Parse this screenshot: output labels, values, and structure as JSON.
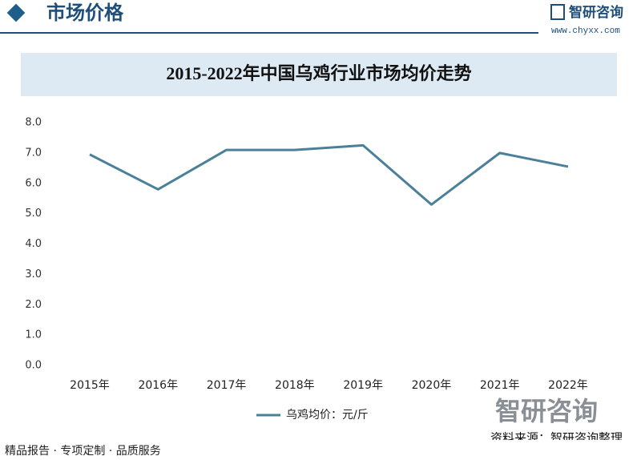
{
  "header": {
    "title": "市场价格",
    "logo": "智研咨询",
    "url": "www.chyxx.com"
  },
  "chart_data": {
    "type": "line",
    "title": "2015-2022年中国乌鸡行业市场均价走势",
    "categories": [
      "2015年",
      "2016年",
      "2017年",
      "2018年",
      "2019年",
      "2020年",
      "2021年",
      "2022年"
    ],
    "series": [
      {
        "name": "乌鸡均价：元/斤",
        "color": "#4a8098",
        "values": [
          6.95,
          5.8,
          7.1,
          7.1,
          7.25,
          5.3,
          7.0,
          6.55
        ]
      }
    ],
    "ylim": [
      0,
      8
    ],
    "yticks": [
      {
        "value": 0,
        "label": "0.0"
      },
      {
        "value": 1,
        "label": "1.0"
      },
      {
        "value": 2,
        "label": "2.0"
      },
      {
        "value": 3,
        "label": "3.0"
      },
      {
        "value": 4,
        "label": "4.0"
      },
      {
        "value": 5,
        "label": "5.0"
      },
      {
        "value": 6,
        "label": "6.0"
      },
      {
        "value": 7,
        "label": "7.0"
      },
      {
        "value": 8,
        "label": "8.0"
      }
    ],
    "grid": false
  },
  "footer": {
    "slogan": "精品报告 · 专项定制 · 品质服务",
    "brand": "智研咨询",
    "source": "资料来源：智研咨询整理"
  }
}
